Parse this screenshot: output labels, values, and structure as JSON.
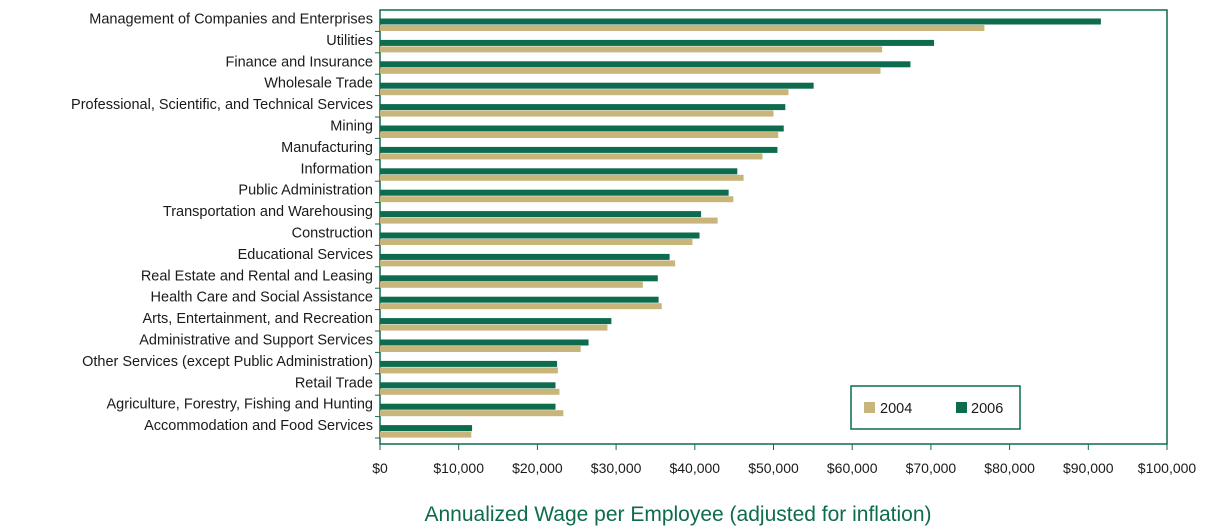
{
  "chart_data": {
    "type": "bar",
    "orientation": "horizontal",
    "title": "",
    "xlabel": "Annualized Wage per Employee (adjusted for inflation)",
    "ylabel": "",
    "xlim": [
      0,
      100000
    ],
    "x_ticks": [
      0,
      10000,
      20000,
      30000,
      40000,
      50000,
      60000,
      70000,
      80000,
      90000,
      100000
    ],
    "x_tick_labels": [
      "$0",
      "$10,000",
      "$20,000",
      "$30,000",
      "$40,000",
      "$50,000",
      "$60,000",
      "$70,000",
      "$80,000",
      "$90,000",
      "$100,000"
    ],
    "grid": false,
    "legend_position": "bottom-right",
    "categories": [
      "Management of Companies and Enterprises",
      "Utilities",
      "Finance and Insurance",
      "Wholesale Trade",
      "Professional, Scientific, and Technical Services",
      "Mining",
      "Manufacturing",
      "Information",
      "Public Administration",
      "Transportation and Warehousing",
      "Construction",
      "Educational Services",
      "Real Estate and Rental and Leasing",
      "Health Care and Social Assistance",
      "Arts, Entertainment, and Recreation",
      "Administrative and Support Services",
      "Other Services (except Public Administration)",
      "Retail Trade",
      "Agriculture, Forestry, Fishing and Hunting",
      "Accommodation and Food Services"
    ],
    "series": [
      {
        "name": "2006",
        "color": "#0d6b4e",
        "values": [
          91600,
          70400,
          67400,
          55100,
          51500,
          51300,
          50500,
          45400,
          44300,
          40800,
          40600,
          36800,
          35300,
          35400,
          29400,
          26500,
          22500,
          22300,
          22300,
          11700
        ]
      },
      {
        "name": "2004",
        "color": "#c8b57c",
        "values": [
          76800,
          63800,
          63600,
          51900,
          50000,
          50600,
          48600,
          46200,
          44900,
          42900,
          39700,
          37500,
          33400,
          35800,
          28900,
          25500,
          22600,
          22800,
          23300,
          11600
        ]
      }
    ],
    "legend": [
      "2004",
      "2006"
    ]
  },
  "colors": {
    "frame": "#0d6b4e",
    "series_2006": "#0d6b4e",
    "series_2004": "#c8b57c"
  }
}
